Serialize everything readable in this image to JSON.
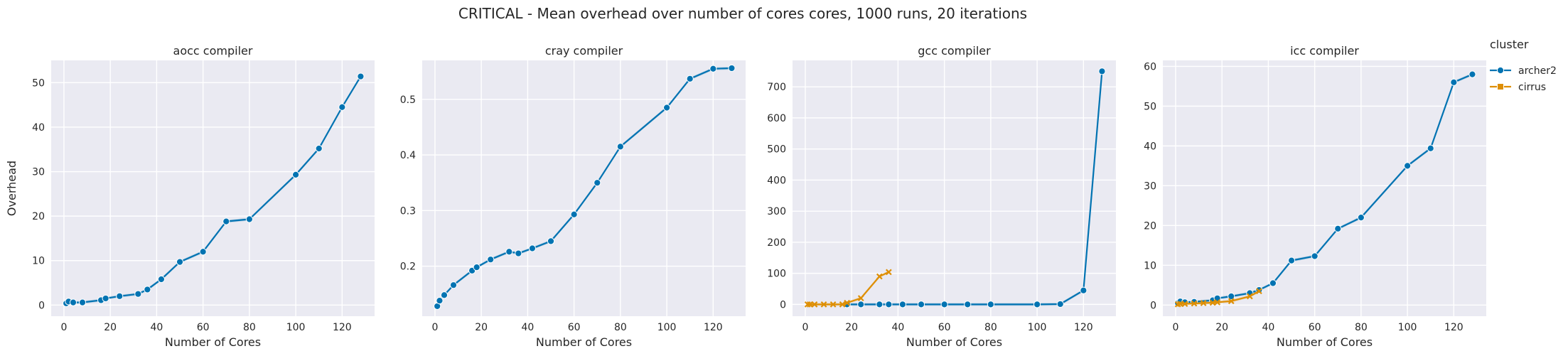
{
  "figure": {
    "title": "CRITICAL - Mean overhead over number of cores cores, 1000 runs, 20 iterations"
  },
  "legend": {
    "title": "cluster",
    "placement": "right",
    "entries": [
      {
        "name": "archer2",
        "color": "#0173b2",
        "marker": "circle"
      },
      {
        "name": "cirrus",
        "color": "#de8f05",
        "marker": "x"
      }
    ]
  },
  "chart_data": [
    {
      "type": "line",
      "title": "aocc compiler",
      "xlabel": "Number of Cores",
      "ylabel": "Overhead",
      "xlim": [
        -5.5,
        134
      ],
      "ylim": [
        -2.5,
        55
      ],
      "xticks": [
        0,
        20,
        40,
        60,
        80,
        100,
        120
      ],
      "yticks": [
        0,
        10,
        20,
        30,
        40,
        50
      ],
      "grid": true,
      "series": [
        {
          "name": "archer2",
          "x": [
            1,
            2,
            4,
            8,
            16,
            18,
            24,
            32,
            36,
            42,
            50,
            60,
            70,
            80,
            100,
            110,
            120,
            128
          ],
          "y": [
            0.4,
            0.8,
            0.6,
            0.6,
            1.1,
            1.5,
            2.0,
            2.5,
            3.5,
            5.8,
            9.7,
            12.0,
            18.8,
            19.3,
            29.3,
            35.2,
            44.5,
            51.4
          ]
        }
      ]
    },
    {
      "type": "line",
      "title": "cray compiler",
      "xlabel": "Number of Cores",
      "ylabel": "",
      "xlim": [
        -5.5,
        134
      ],
      "ylim": [
        0.11,
        0.57
      ],
      "xticks": [
        0,
        20,
        40,
        60,
        80,
        100,
        120
      ],
      "yticks": [
        0.2,
        0.3,
        0.4,
        0.5
      ],
      "grid": true,
      "series": [
        {
          "name": "archer2",
          "x": [
            1,
            2,
            4,
            8,
            16,
            18,
            24,
            32,
            36,
            42,
            50,
            60,
            70,
            80,
            100,
            110,
            120,
            128
          ],
          "y": [
            0.128,
            0.138,
            0.148,
            0.166,
            0.192,
            0.198,
            0.212,
            0.226,
            0.223,
            0.232,
            0.245,
            0.293,
            0.35,
            0.415,
            0.485,
            0.537,
            0.555,
            0.556
          ]
        }
      ]
    },
    {
      "type": "line",
      "title": "gcc compiler",
      "xlabel": "Number of Cores",
      "ylabel": "",
      "xlim": [
        -5.5,
        134
      ],
      "ylim": [
        -38,
        785
      ],
      "xticks": [
        0,
        20,
        40,
        60,
        80,
        100,
        120
      ],
      "yticks": [
        0,
        100,
        200,
        300,
        400,
        500,
        600,
        700
      ],
      "grid": true,
      "series": [
        {
          "name": "archer2",
          "x": [
            18,
            24,
            32,
            36,
            42,
            50,
            60,
            70,
            80,
            100,
            110,
            120,
            128
          ],
          "y": [
            0,
            0,
            0,
            0,
            0,
            0,
            0,
            0,
            0,
            0,
            1,
            45,
            750
          ]
        },
        {
          "name": "cirrus",
          "x": [
            1,
            2,
            4,
            8,
            12,
            16,
            18,
            24,
            32,
            36
          ],
          "y": [
            0,
            0,
            0,
            0,
            0,
            0,
            5,
            20,
            90,
            104
          ]
        }
      ]
    },
    {
      "type": "line",
      "title": "icc compiler",
      "xlabel": "Number of Cores",
      "ylabel": "",
      "xlim": [
        -5.5,
        134
      ],
      "ylim": [
        -2.8,
        61.5
      ],
      "xticks": [
        0,
        20,
        40,
        60,
        80,
        100,
        120
      ],
      "yticks": [
        0,
        10,
        20,
        30,
        40,
        50,
        60
      ],
      "grid": true,
      "series": [
        {
          "name": "archer2",
          "x": [
            1,
            2,
            4,
            8,
            16,
            18,
            24,
            32,
            36,
            42,
            50,
            60,
            70,
            80,
            100,
            110,
            120,
            128
          ],
          "y": [
            0.5,
            0.9,
            0.7,
            0.8,
            1.2,
            1.7,
            2.2,
            3.0,
            3.8,
            5.5,
            11.2,
            12.3,
            19.2,
            22.0,
            35.0,
            39.4,
            56.0,
            58.0
          ]
        },
        {
          "name": "cirrus",
          "x": [
            1,
            2,
            4,
            8,
            12,
            16,
            18,
            24,
            32,
            36
          ],
          "y": [
            0.2,
            0.3,
            0.3,
            0.4,
            0.5,
            0.6,
            0.7,
            1.0,
            2.2,
            3.5
          ]
        }
      ]
    }
  ]
}
